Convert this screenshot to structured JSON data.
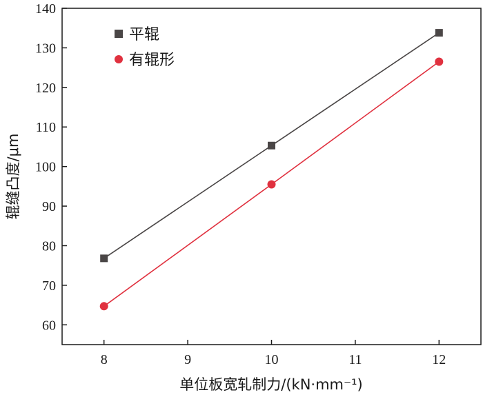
{
  "chart_data": {
    "type": "line",
    "xlabel": "单位板宽轧制力/(kN·mm⁻¹)",
    "ylabel": "辊缝凸度/μm",
    "xlim": [
      7.5,
      12.5
    ],
    "ylim": [
      55,
      140
    ],
    "xticks": [
      8,
      9,
      10,
      11,
      12
    ],
    "yticks": [
      60,
      70,
      80,
      90,
      100,
      110,
      120,
      130,
      140
    ],
    "grid": false,
    "legend_position": "top-left",
    "series": [
      {
        "name": "平辊",
        "marker": "square",
        "color": "#4a4646",
        "x": [
          8,
          10,
          12
        ],
        "values": [
          76.8,
          105.3,
          133.8
        ]
      },
      {
        "name": "有辊形",
        "marker": "circle",
        "color": "#e0313f",
        "x": [
          8,
          10,
          12
        ],
        "values": [
          64.7,
          95.5,
          126.5
        ]
      }
    ]
  }
}
